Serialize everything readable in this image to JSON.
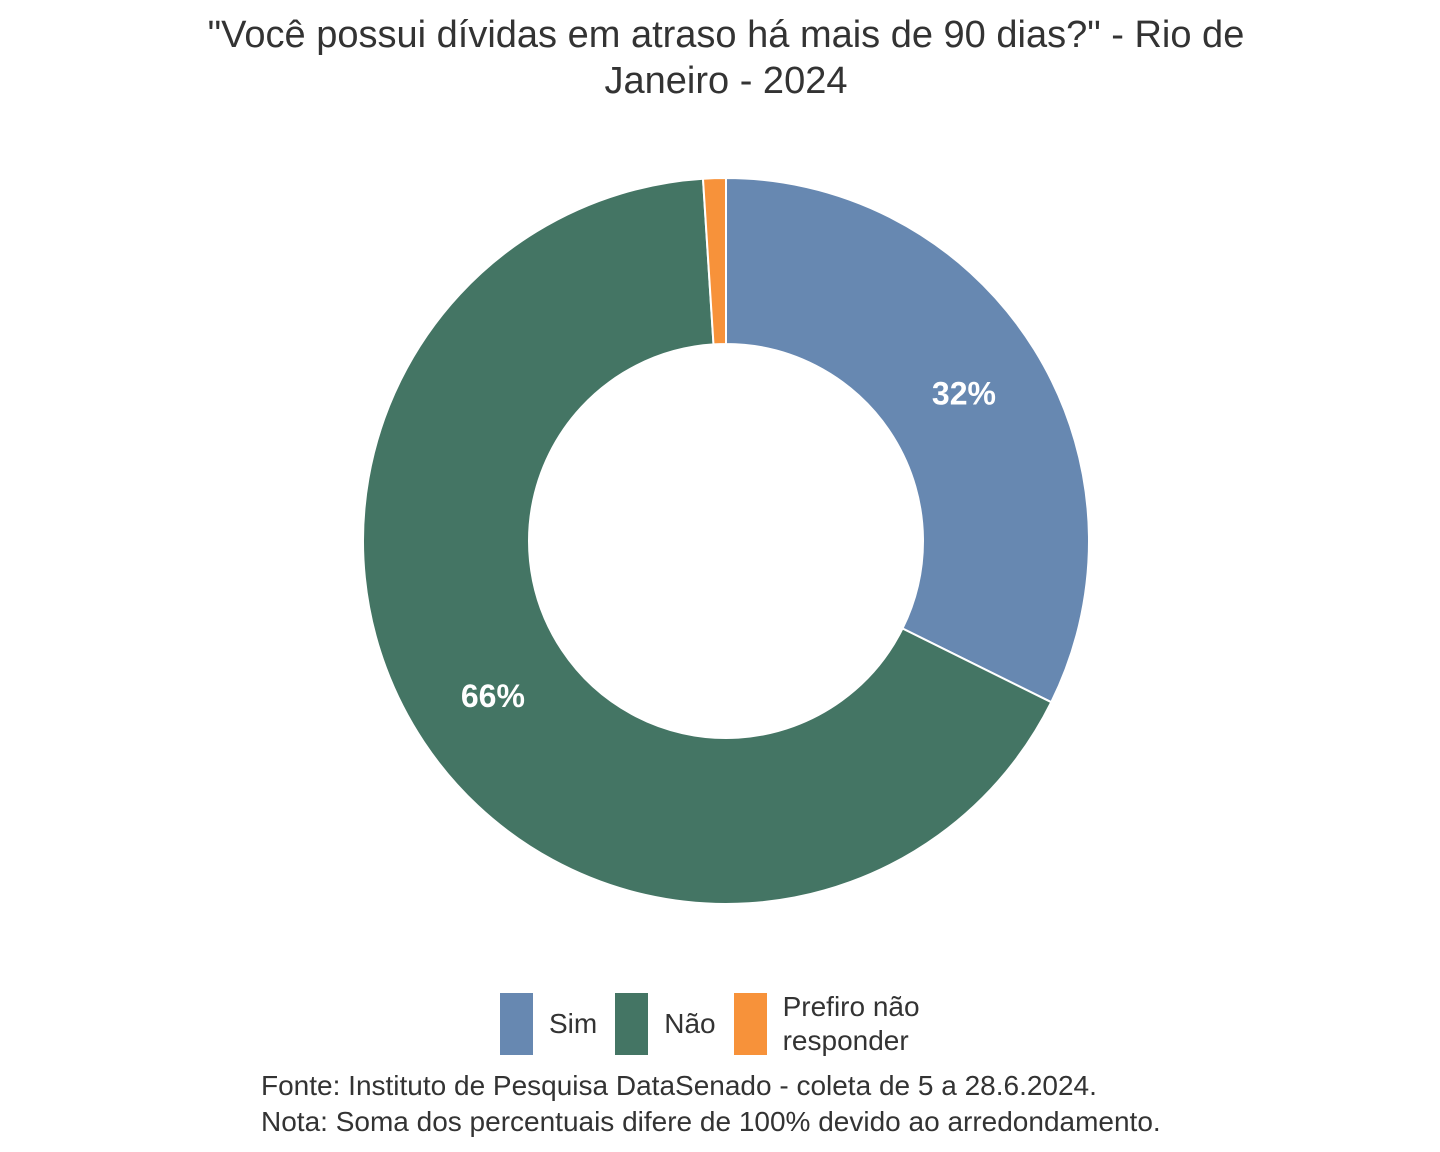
{
  "chart_data": {
    "type": "pie",
    "variant": "donut",
    "title_lines": [
      "\"Você possui dívidas em atraso há mais de 90 dias?\" - Rio de",
      "Janeiro - 2024"
    ],
    "categories": [
      "Sim",
      "Não",
      "Prefiro não responder"
    ],
    "values": [
      32,
      66,
      1
    ],
    "data_labels": [
      "32%",
      "66%",
      ""
    ],
    "colors": [
      "#6788b1",
      "#447564",
      "#f7923a"
    ],
    "legend": {
      "position": "bottom",
      "entries": [
        {
          "lines": [
            "Sim"
          ],
          "color": "#6788b1"
        },
        {
          "lines": [
            "Não"
          ],
          "color": "#447564"
        },
        {
          "lines": [
            "Prefiro não",
            "responder"
          ],
          "color": "#f7923a"
        }
      ]
    }
  },
  "footnotes": {
    "source": "Fonte: Instituto de Pesquisa DataSenado - coleta de 5 a 28.6.2024.",
    "note": "Nota: Soma dos percentuais difere de 100% devido ao arredondamento."
  }
}
